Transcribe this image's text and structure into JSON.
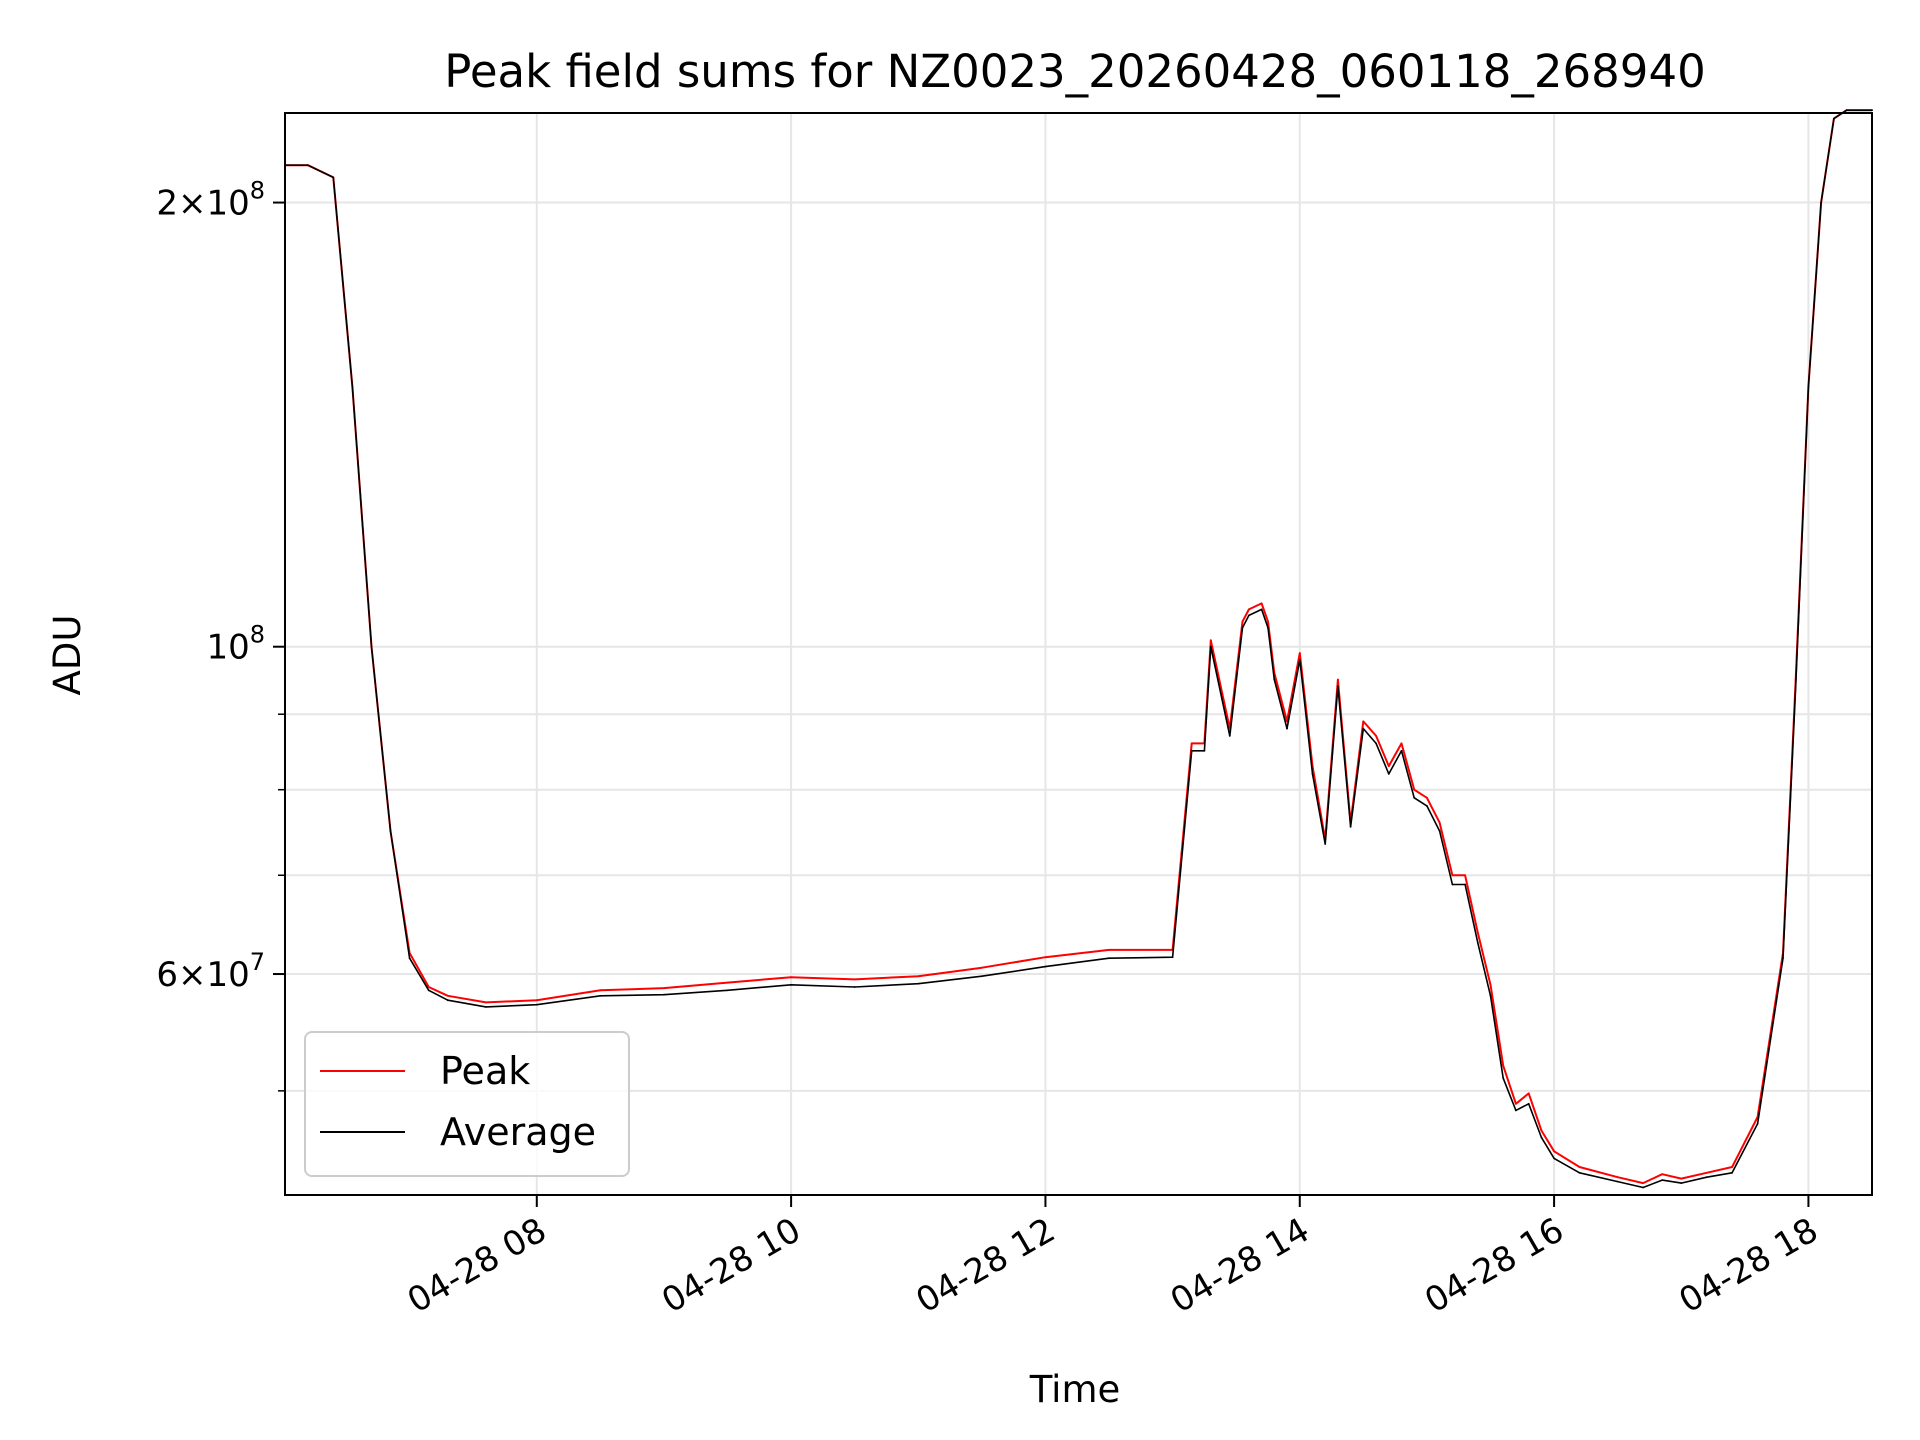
{
  "chart_data": {
    "type": "line",
    "title": "Peak field sums for NZ0023_20260428_060118_268940",
    "xlabel": "Time",
    "ylabel": "ADU",
    "yscale": "log",
    "grid": true,
    "legend_position": "lower-left",
    "xlim_hours": [
      6.02,
      18.5
    ],
    "ylim": [
      42500000,
      230000000
    ],
    "x_ticks": [
      {
        "value": 8,
        "label": "04-28 08"
      },
      {
        "value": 10,
        "label": "04-28 10"
      },
      {
        "value": 12,
        "label": "04-28 12"
      },
      {
        "value": 14,
        "label": "04-28 14"
      },
      {
        "value": 16,
        "label": "04-28 16"
      },
      {
        "value": 18,
        "label": "04-28 18"
      }
    ],
    "y_ticks_major": [
      {
        "value": 60000000,
        "base": "6",
        "exp": "7"
      },
      {
        "value": 100000000,
        "base": "",
        "exp": "8"
      },
      {
        "value": 200000000,
        "base": "2",
        "exp": "8"
      }
    ],
    "y_ticks_minor": [
      50000000,
      70000000,
      80000000,
      90000000
    ],
    "series": [
      {
        "name": "Peak",
        "color": "#ff0000",
        "x": [
          6.02,
          6.2,
          6.4,
          6.55,
          6.7,
          6.85,
          7.0,
          7.15,
          7.3,
          7.6,
          8.0,
          8.5,
          9.0,
          9.5,
          10.0,
          10.5,
          11.0,
          11.5,
          12.0,
          12.5,
          13.0,
          13.15,
          13.25,
          13.3,
          13.45,
          13.55,
          13.6,
          13.7,
          13.75,
          13.8,
          13.9,
          14.0,
          14.1,
          14.2,
          14.3,
          14.4,
          14.5,
          14.6,
          14.7,
          14.8,
          14.9,
          15.0,
          15.1,
          15.2,
          15.3,
          15.4,
          15.5,
          15.6,
          15.7,
          15.8,
          15.9,
          16.0,
          16.2,
          16.5,
          16.7,
          16.85,
          17.0,
          17.2,
          17.4,
          17.6,
          17.8,
          17.9,
          18.0,
          18.1,
          18.2,
          18.3,
          18.5
        ],
        "values": [
          212000000,
          212000000,
          208000000,
          150000000,
          100000000,
          75000000,
          62000000,
          58800000,
          58000000,
          57400000,
          57600000,
          58500000,
          58700000,
          59200000,
          59700000,
          59500000,
          59800000,
          60600000,
          61600000,
          62300000,
          62300000,
          86000000,
          86000000,
          101000000,
          88000000,
          104000000,
          106000000,
          107000000,
          104000000,
          96000000,
          89000000,
          99000000,
          83000000,
          74000000,
          95000000,
          76000000,
          89000000,
          87000000,
          83000000,
          86000000,
          80000000,
          79000000,
          76000000,
          70000000,
          70000000,
          64000000,
          59000000,
          52000000,
          49000000,
          49800000,
          47000000,
          45500000,
          44400000,
          43700000,
          43300000,
          43900000,
          43600000,
          44000000,
          44400000,
          48000000,
          62000000,
          95000000,
          150000000,
          200000000,
          228000000,
          231000000,
          231000000
        ]
      },
      {
        "name": "Average",
        "color": "#000000",
        "x": [
          6.02,
          6.2,
          6.4,
          6.55,
          6.7,
          6.85,
          7.0,
          7.15,
          7.3,
          7.6,
          8.0,
          8.5,
          9.0,
          9.5,
          10.0,
          10.5,
          11.0,
          11.5,
          12.0,
          12.5,
          13.0,
          13.15,
          13.25,
          13.3,
          13.45,
          13.55,
          13.6,
          13.7,
          13.75,
          13.8,
          13.9,
          14.0,
          14.1,
          14.2,
          14.3,
          14.4,
          14.5,
          14.6,
          14.7,
          14.8,
          14.9,
          15.0,
          15.1,
          15.2,
          15.3,
          15.4,
          15.5,
          15.6,
          15.7,
          15.8,
          15.9,
          16.0,
          16.2,
          16.5,
          16.7,
          16.85,
          17.0,
          17.2,
          17.4,
          17.6,
          17.8,
          17.9,
          18.0,
          18.1,
          18.2,
          18.3,
          18.5
        ],
        "values": [
          212000000,
          212000000,
          208000000,
          150000000,
          100000000,
          75000000,
          61500000,
          58500000,
          57600000,
          57000000,
          57200000,
          58000000,
          58100000,
          58500000,
          59000000,
          58800000,
          59100000,
          59800000,
          60700000,
          61500000,
          61600000,
          85000000,
          85000000,
          100000000,
          87000000,
          103000000,
          105000000,
          106000000,
          103000000,
          95000000,
          88000000,
          98000000,
          82000000,
          73500000,
          94000000,
          75500000,
          88000000,
          86000000,
          82000000,
          85000000,
          79000000,
          78000000,
          75000000,
          69000000,
          69000000,
          63000000,
          58000000,
          51000000,
          48500000,
          49000000,
          46500000,
          45000000,
          44000000,
          43400000,
          43000000,
          43500000,
          43300000,
          43700000,
          44000000,
          47500000,
          61500000,
          94000000,
          150000000,
          200000000,
          228000000,
          231000000,
          231000000
        ]
      }
    ]
  }
}
